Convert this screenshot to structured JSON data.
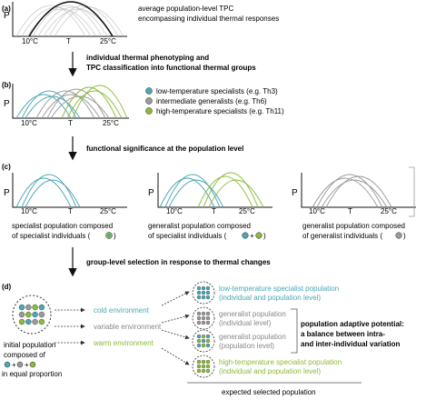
{
  "colors": {
    "blue": "#4aa7b5",
    "gray": "#9a9a9a",
    "green": "#8cba3a",
    "black": "#111111"
  },
  "panel_a": {
    "label": "(a)",
    "y_label": "P",
    "ticks": [
      "10°C",
      "T",
      "25°C"
    ],
    "caption_line1": "average population-level TPC",
    "caption_line2": "encompassing individual thermal responses"
  },
  "step1": {
    "line1": "individual thermal phenotyping and",
    "line2": "TPC classification into functional thermal groups"
  },
  "panel_b": {
    "label": "(b)",
    "y_label": "P",
    "ticks": [
      "10°C",
      "T",
      "25°C"
    ],
    "legend": [
      {
        "text": "low-temperature specialists (e.g. Th3)",
        "color": "blue"
      },
      {
        "text": "intermediate generalists (e.g. Th6)",
        "color": "gray"
      },
      {
        "text": "high-temperature specialists (e.g. Th11)",
        "color": "green"
      }
    ]
  },
  "step2": {
    "text": "functional significance at the population level"
  },
  "panel_c": {
    "label": "(c)",
    "y_label": "P",
    "ticks": [
      "10°C",
      "T",
      "25°C"
    ],
    "sub1_line1": "specialist population composed",
    "sub1_line2": "of specialist individuals (",
    "sub2_line1": "generalist population composed",
    "sub2_line2": "of specialist individuals (",
    "sub2_plus": "+",
    "sub3_line1": "generalist population composed",
    "sub3_line2": "of generalist individuals (",
    "close": ")"
  },
  "step3": {
    "text": "group-level selection in response to thermal changes"
  },
  "panel_d": {
    "label": "(d)",
    "initial_line1": "initial population",
    "initial_line2": "composed of",
    "initial_line4": "in equal proportion",
    "plus": "+",
    "env_cold": "cold environment",
    "env_variable": "variable environment",
    "env_warm": "warm environment",
    "out1_line1": "low-temperature specialist population",
    "out1_line2": "(individual and population level)",
    "out2_line1": "generalist population",
    "out2_line2": "(individual level)",
    "out3_line1": "generalist population",
    "out3_line2": "(population level)",
    "out4_line1": "high-temperature specialist population",
    "out4_line2": "(individual and population level)",
    "adaptive_line1": "population adaptive potential:",
    "adaptive_line2": "a balance between intra-",
    "adaptive_line3": "and inter-individual variation",
    "footer": "expected selected population"
  }
}
